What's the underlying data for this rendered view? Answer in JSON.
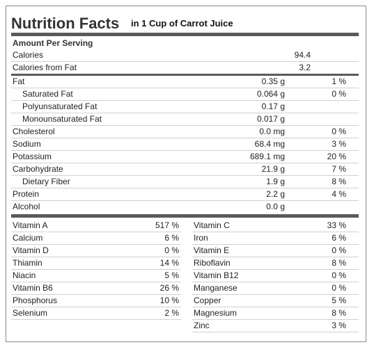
{
  "header": {
    "title": "Nutrition Facts",
    "subtitle": "in 1 Cup of Carrot Juice"
  },
  "amount_per_serving": "Amount Per Serving",
  "calories": [
    {
      "label": "Calories",
      "value": "94.4"
    },
    {
      "label": "Calories from Fat",
      "value": "3.2"
    }
  ],
  "nutrients": [
    {
      "name": "Fat",
      "amount": "0.35 g",
      "dv": "1 %",
      "components": [
        {
          "name": "Saturated Fat",
          "amount": "0.064 g",
          "dv": "0 %"
        },
        {
          "name": "Polyunsaturated Fat",
          "amount": "0.17 g"
        },
        {
          "name": "Monounsaturated Fat",
          "amount": "0.017 g"
        }
      ]
    },
    {
      "name": "Cholesterol",
      "amount": "0.0 mg",
      "dv": "0 %"
    },
    {
      "name": "Sodium",
      "amount": "68.4 mg",
      "dv": "3 %"
    },
    {
      "name": "Potassium",
      "amount": "689.1 mg",
      "dv": "20 %"
    },
    {
      "name": "Carbohydrate",
      "amount": "21.9 g",
      "dv": "7 %",
      "components": [
        {
          "name": "Dietary Fiber",
          "amount": "1.9 g",
          "dv": "8 %"
        }
      ]
    },
    {
      "name": "Protein",
      "amount": "2.2 g",
      "dv": "4 %"
    },
    {
      "name": "Alcohol",
      "amount": "0.0 g"
    }
  ],
  "vitamins": {
    "left": [
      {
        "name": "Vitamin A",
        "dv": "517 %"
      },
      {
        "name": "Calcium",
        "dv": "6 %"
      },
      {
        "name": "Vitamin D",
        "dv": "0 %"
      },
      {
        "name": "Thiamin",
        "dv": "14 %"
      },
      {
        "name": "Niacin",
        "dv": "5 %"
      },
      {
        "name": "Vitamin B6",
        "dv": "26 %"
      },
      {
        "name": "Phosphorus",
        "dv": "10 %"
      },
      {
        "name": "Selenium",
        "dv": "2 %"
      }
    ],
    "right": [
      {
        "name": "Vitamin C",
        "dv": "33 %"
      },
      {
        "name": "Iron",
        "dv": "6 %"
      },
      {
        "name": "Vitamin E",
        "dv": "0 %"
      },
      {
        "name": "Riboflavin",
        "dv": "8 %"
      },
      {
        "name": "Vitamin B12",
        "dv": "0 %"
      },
      {
        "name": "Manganese",
        "dv": "0 %"
      },
      {
        "name": "Copper",
        "dv": "5 %"
      },
      {
        "name": "Magnesium",
        "dv": "8 %"
      },
      {
        "name": "Zinc",
        "dv": "3 %"
      }
    ]
  }
}
